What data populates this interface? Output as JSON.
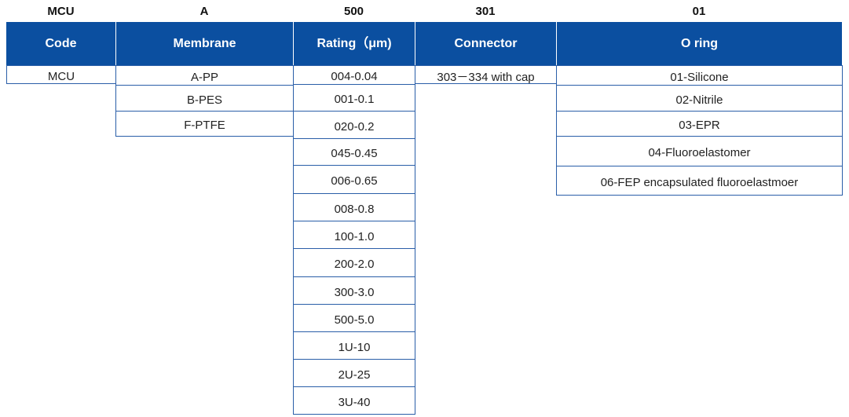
{
  "codes": [
    "MCU",
    "A",
    "500",
    "301",
    "01"
  ],
  "columns": [
    {
      "header": "Code",
      "cells": [
        "MCU"
      ]
    },
    {
      "header": "Membrane",
      "cells": [
        "A-PP",
        "B-PES",
        "F-PTFE"
      ]
    },
    {
      "header": "Rating（μm)",
      "cells": [
        "004-0.04",
        "001-0.1",
        "020-0.2",
        "045-0.45",
        "006-0.65",
        "008-0.8",
        "100-1.0",
        "200-2.0",
        "300-3.0",
        "500-5.0",
        "1U-10",
        "2U-25",
        "3U-40"
      ]
    },
    {
      "header": "Connector",
      "cells": [
        "303－334 with cap"
      ]
    },
    {
      "header": "O ring",
      "cells": [
        "01-Silicone",
        "02-Nitrile",
        "03-EPR",
        "04-Fluoroelastomer",
        "06-FEP encapsulated fluoroelastmoer"
      ]
    }
  ]
}
